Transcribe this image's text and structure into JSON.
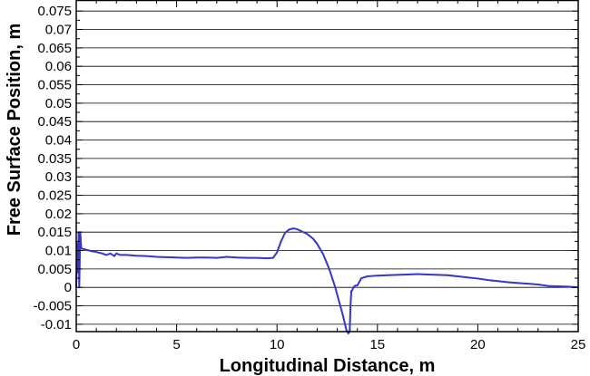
{
  "chart_data": {
    "type": "line",
    "title": "",
    "xlabel": "Longitudinal Distance, m",
    "ylabel": "Free Surface Position, m",
    "xlim": [
      0,
      25
    ],
    "ylim": [
      -0.012,
      0.078
    ],
    "x_ticks": [
      0,
      5,
      10,
      15,
      20,
      25
    ],
    "x_tick_labels": [
      "0",
      "5",
      "10",
      "15",
      "20",
      "25"
    ],
    "y_ticks": [
      -0.01,
      -0.005,
      0,
      0.005,
      0.01,
      0.015,
      0.02,
      0.025,
      0.03,
      0.035,
      0.04,
      0.045,
      0.05,
      0.055,
      0.06,
      0.065,
      0.07,
      0.075
    ],
    "y_tick_labels": [
      "-0.01",
      "-0.005",
      "0",
      "0.005",
      "0.01",
      "0.015",
      "0.02",
      "0.025",
      "0.03",
      "0.035",
      "0.04",
      "0.045",
      "0.05",
      "0.055",
      "0.06",
      "0.065",
      "0.07",
      "0.075"
    ],
    "grid": true,
    "line_color": "#3535c8",
    "series": [
      {
        "x": [
          0.0,
          0.05,
          0.1,
          0.12,
          0.15,
          0.2,
          0.25,
          0.3,
          0.5,
          0.8,
          1.0,
          1.3,
          1.5,
          1.7,
          1.9,
          2.0,
          2.2,
          2.5,
          3.0,
          3.5,
          4.0,
          4.5,
          5.0,
          5.5,
          6.0,
          6.5,
          7.0,
          7.5,
          8.0,
          8.5,
          9.0,
          9.5,
          9.8,
          10.0,
          10.2,
          10.4,
          10.6,
          10.8,
          11.0,
          11.2,
          11.5,
          11.8,
          12.0,
          12.3,
          12.6,
          12.9,
          13.1,
          13.3,
          13.45,
          13.55,
          13.62,
          13.66,
          13.7,
          13.75,
          13.8,
          13.9,
          14.0,
          14.2,
          14.5,
          15.0,
          15.5,
          16.0,
          16.5,
          17.0,
          17.5,
          18.0,
          18.5,
          19.0,
          19.5,
          20.0,
          20.5,
          21.0,
          21.5,
          22.0,
          22.5,
          23.0,
          23.5,
          24.0,
          24.5,
          25.0
        ],
        "y": [
          0.0,
          0.012,
          0.004,
          0.015,
          0.0,
          0.015,
          0.0105,
          0.0105,
          0.0102,
          0.0098,
          0.0096,
          0.0092,
          0.0088,
          0.0092,
          0.0085,
          0.0092,
          0.0088,
          0.0088,
          0.0086,
          0.0085,
          0.0083,
          0.0082,
          0.0081,
          0.008,
          0.0081,
          0.0081,
          0.008,
          0.0083,
          0.0081,
          0.008,
          0.008,
          0.0079,
          0.008,
          0.0095,
          0.0125,
          0.0148,
          0.0157,
          0.016,
          0.0158,
          0.0153,
          0.0145,
          0.0132,
          0.0118,
          0.009,
          0.005,
          0.0,
          -0.004,
          -0.008,
          -0.0115,
          -0.0125,
          -0.012,
          -0.005,
          -0.001,
          -0.0008,
          0.0,
          0.0005,
          0.0005,
          0.0025,
          0.003,
          0.0032,
          0.0033,
          0.0034,
          0.0035,
          0.0036,
          0.0035,
          0.0034,
          0.0033,
          0.003,
          0.0027,
          0.0024,
          0.002,
          0.0017,
          0.0014,
          0.0012,
          0.001,
          0.0008,
          0.0004,
          0.0003,
          0.0002,
          0.0
        ]
      }
    ]
  }
}
